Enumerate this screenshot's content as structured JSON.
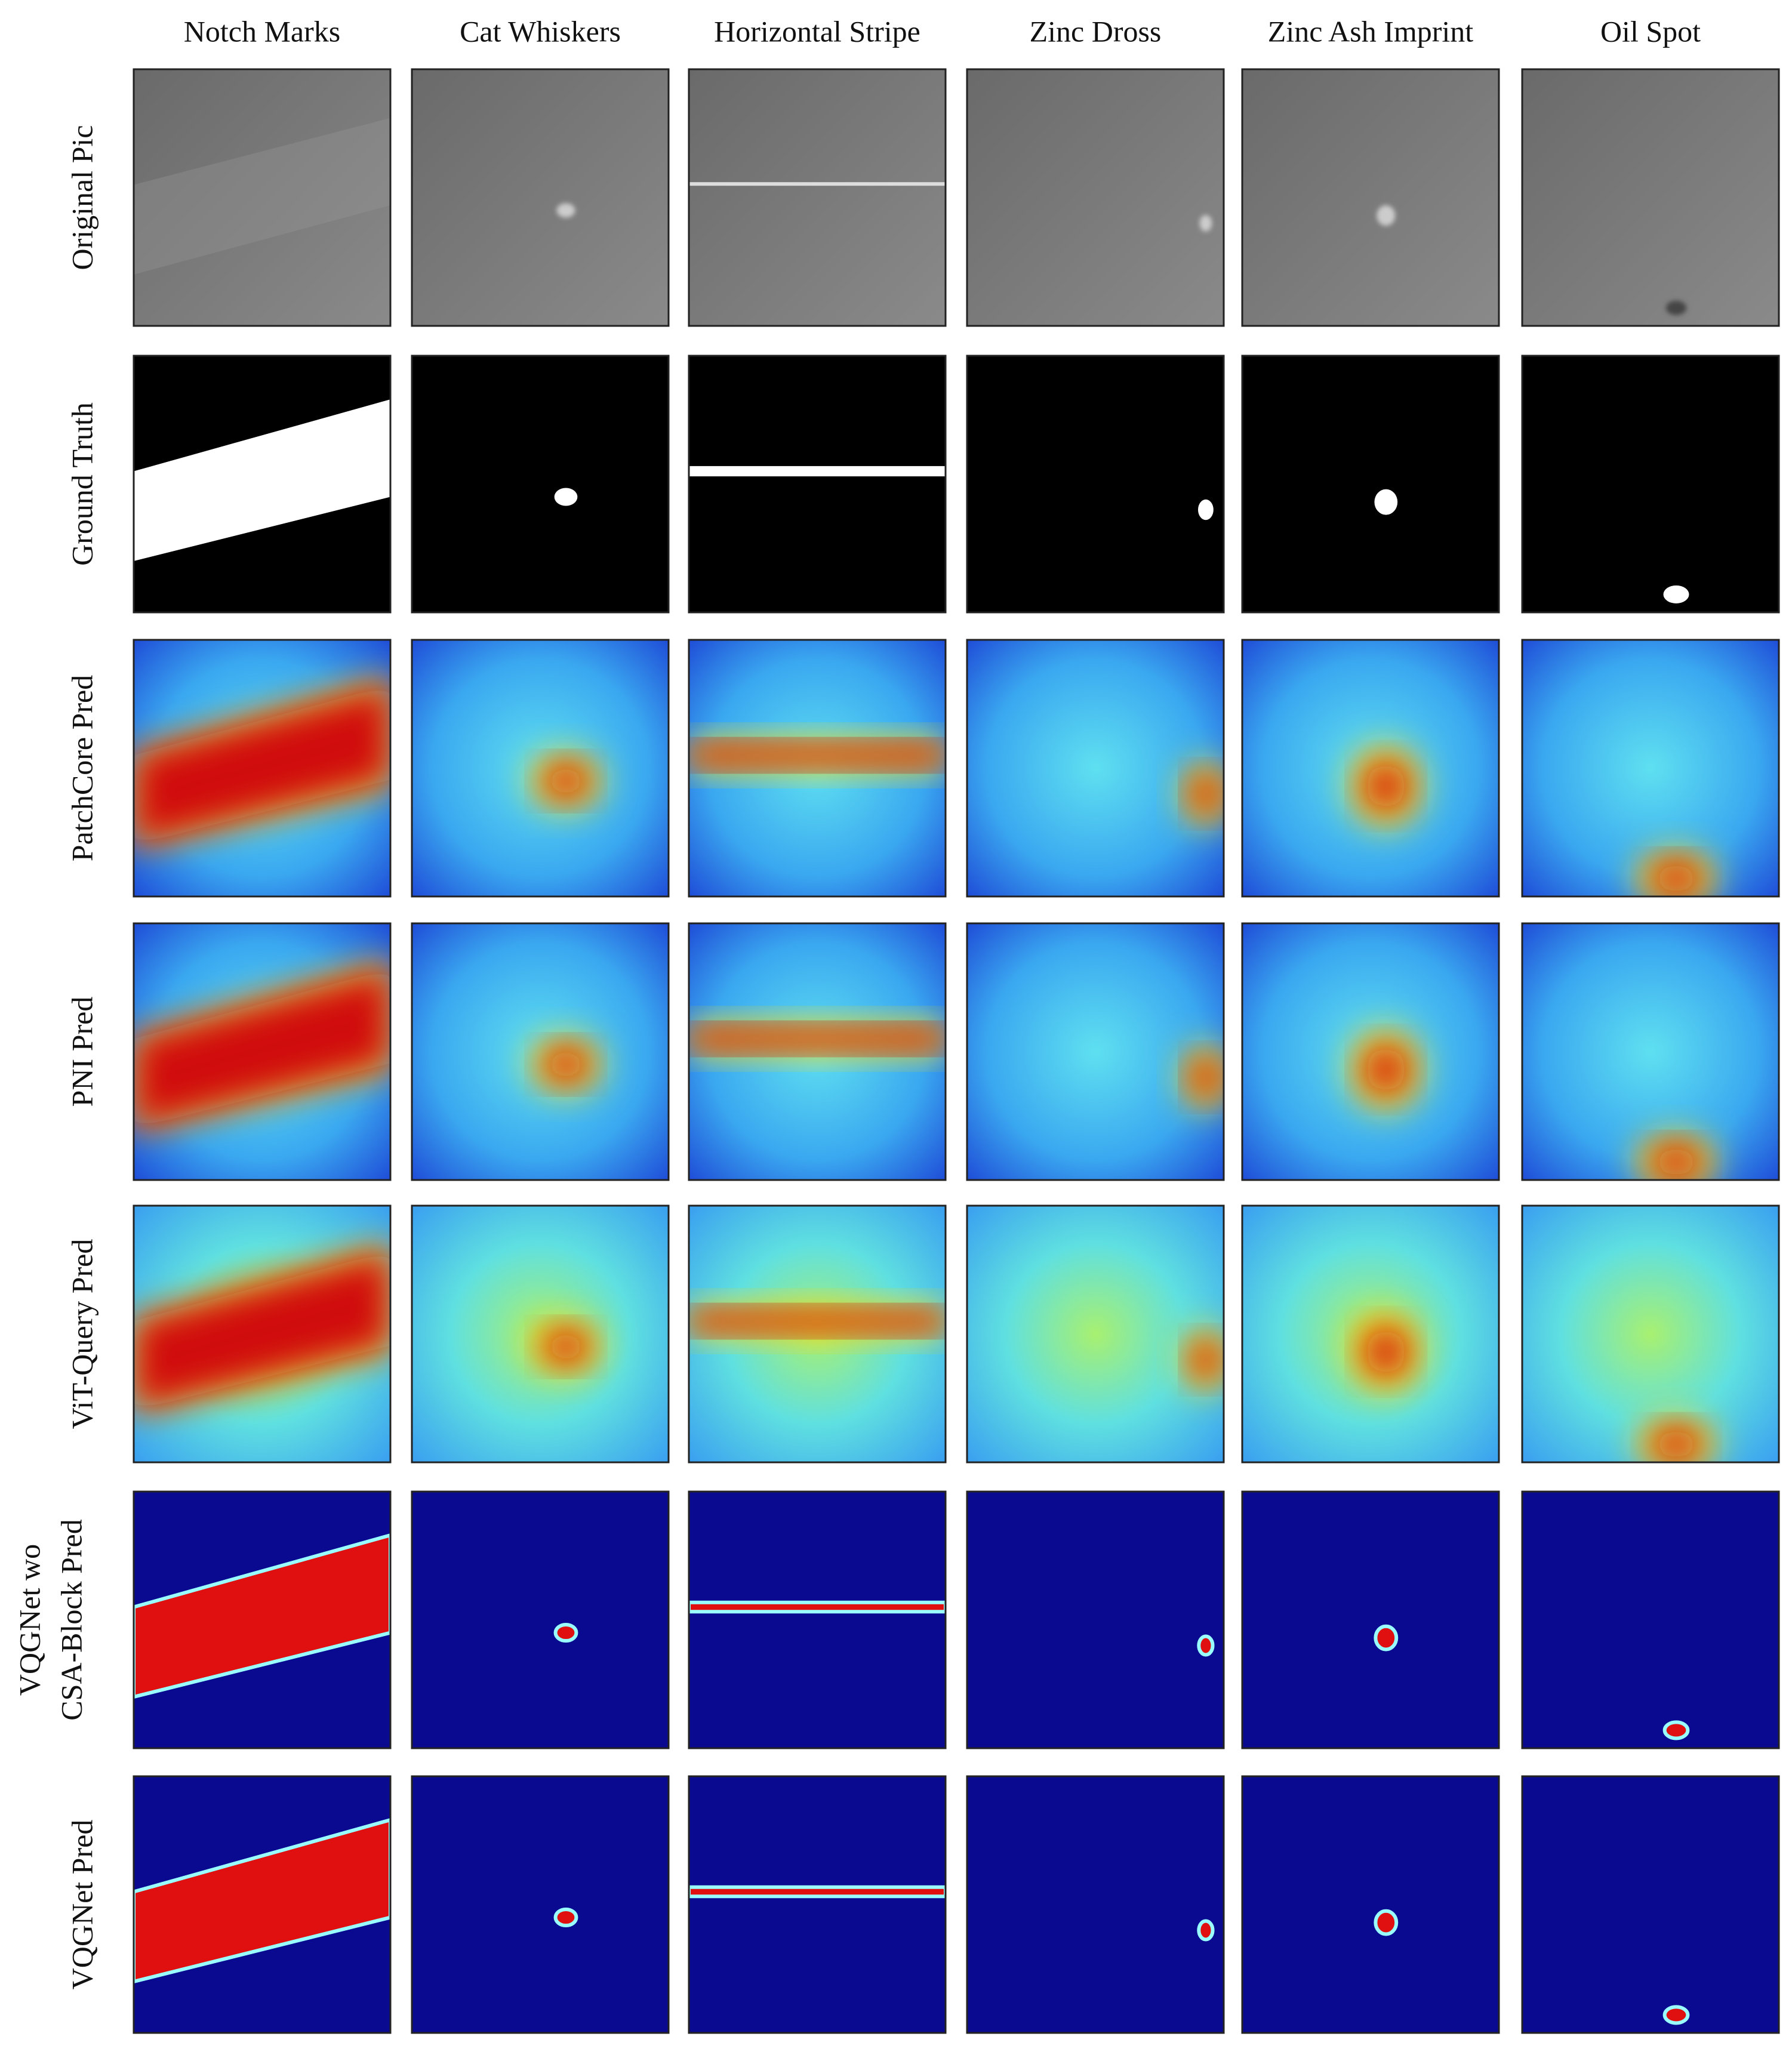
{
  "columns": [
    "Notch Marks",
    "Cat Whiskers",
    "Horizontal Stripe",
    "Zinc Dross",
    "Zinc Ash Imprint",
    "Oil Spot"
  ],
  "rows": [
    [
      "Original Pic"
    ],
    [
      "Ground Truth"
    ],
    [
      "PatchCore Pred"
    ],
    [
      "PNI Pred"
    ],
    [
      "ViT-Query  Pred"
    ],
    [
      "VQGNet  wo",
      "CSA-Block Pred"
    ],
    [
      "VQGNet  Pred"
    ]
  ]
}
